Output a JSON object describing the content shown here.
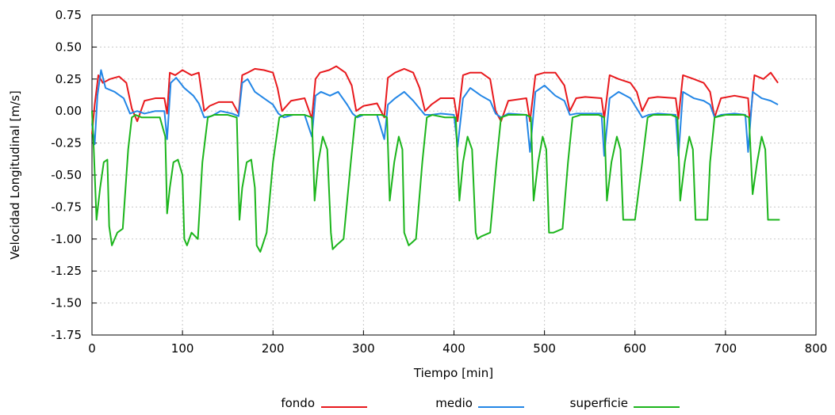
{
  "chart_data": {
    "type": "line",
    "title": "",
    "xlabel": "Tiempo [min]",
    "ylabel": "Velocidad Longitudinal [m/s]",
    "xlim": [
      0,
      800
    ],
    "ylim": [
      -1.75,
      0.75
    ],
    "xticks": [
      0,
      100,
      200,
      300,
      400,
      500,
      600,
      700,
      800
    ],
    "xtick_labels": [
      "0",
      "100",
      "200",
      "300",
      "400",
      "500",
      "600",
      "700",
      "800"
    ],
    "yticks": [
      0.75,
      0.5,
      0.25,
      0.0,
      -0.25,
      -0.5,
      -0.75,
      -1.0,
      -1.25,
      -1.5,
      -1.75
    ],
    "ytick_labels": [
      "0.75",
      "0.50",
      "0.25",
      "0.00",
      "-0.25",
      "-0.50",
      "-0.75",
      "-1.00",
      "-1.25",
      "-1.50",
      "-1.75"
    ],
    "grid": true,
    "legend_position": "bottom",
    "series": [
      {
        "name": "fondo",
        "color": "#e8191d",
        "x": [
          0,
          3,
          7,
          12,
          20,
          30,
          38,
          44,
          50,
          58,
          70,
          80,
          83,
          86,
          92,
          100,
          110,
          118,
          124,
          130,
          140,
          155,
          162,
          166,
          172,
          180,
          190,
          200,
          205,
          210,
          220,
          235,
          243,
          247,
          252,
          262,
          270,
          280,
          287,
          292,
          300,
          315,
          323,
          327,
          335,
          345,
          355,
          362,
          368,
          375,
          385,
          400,
          404,
          410,
          418,
          430,
          440,
          446,
          452,
          460,
          480,
          484,
          490,
          500,
          512,
          522,
          528,
          535,
          545,
          563,
          566,
          572,
          582,
          595,
          602,
          608,
          615,
          625,
          645,
          648,
          653,
          665,
          676,
          683,
          688,
          695,
          710,
          725,
          727,
          732,
          742,
          750,
          758
        ],
        "y": [
          -0.18,
          0.05,
          0.28,
          0.22,
          0.25,
          0.27,
          0.22,
          0.02,
          -0.08,
          0.08,
          0.1,
          0.1,
          -0.02,
          0.3,
          0.28,
          0.32,
          0.28,
          0.3,
          0.0,
          0.04,
          0.07,
          0.07,
          -0.02,
          0.28,
          0.3,
          0.33,
          0.32,
          0.3,
          0.18,
          0.0,
          0.08,
          0.1,
          -0.06,
          0.25,
          0.3,
          0.32,
          0.35,
          0.3,
          0.2,
          0.0,
          0.04,
          0.06,
          -0.05,
          0.26,
          0.3,
          0.33,
          0.3,
          0.18,
          0.0,
          0.05,
          0.1,
          0.1,
          -0.08,
          0.28,
          0.3,
          0.3,
          0.25,
          0.0,
          -0.08,
          0.08,
          0.1,
          -0.08,
          0.28,
          0.3,
          0.3,
          0.2,
          0.0,
          0.1,
          0.11,
          0.1,
          -0.06,
          0.28,
          0.25,
          0.22,
          0.15,
          0.0,
          0.1,
          0.11,
          0.1,
          -0.06,
          0.28,
          0.25,
          0.22,
          0.15,
          -0.05,
          0.1,
          0.12,
          0.1,
          -0.1,
          0.28,
          0.25,
          0.3,
          0.22
        ]
      },
      {
        "name": "medio",
        "color": "#2386e6",
        "x": [
          0,
          3,
          6,
          10,
          15,
          25,
          35,
          42,
          50,
          58,
          70,
          80,
          83,
          87,
          93,
          102,
          112,
          118,
          124,
          132,
          142,
          155,
          162,
          166,
          172,
          180,
          190,
          200,
          206,
          212,
          222,
          235,
          243,
          247,
          253,
          263,
          272,
          282,
          288,
          293,
          300,
          315,
          323,
          327,
          335,
          345,
          355,
          362,
          368,
          375,
          385,
          400,
          404,
          410,
          418,
          430,
          440,
          446,
          452,
          460,
          480,
          484,
          490,
          500,
          512,
          522,
          528,
          535,
          545,
          563,
          566,
          572,
          582,
          595,
          602,
          608,
          615,
          625,
          645,
          648,
          653,
          665,
          676,
          683,
          688,
          695,
          710,
          722,
          725,
          730,
          740,
          750,
          758
        ],
        "y": [
          -0.1,
          -0.26,
          0.12,
          0.32,
          0.18,
          0.15,
          0.1,
          -0.02,
          0.0,
          -0.02,
          0.0,
          0.0,
          -0.22,
          0.22,
          0.26,
          0.18,
          0.12,
          0.06,
          -0.05,
          -0.04,
          0.0,
          -0.02,
          -0.04,
          0.22,
          0.25,
          0.15,
          0.1,
          0.05,
          -0.02,
          -0.05,
          -0.03,
          -0.03,
          -0.2,
          0.12,
          0.15,
          0.12,
          0.15,
          0.05,
          -0.02,
          -0.05,
          -0.03,
          -0.03,
          -0.22,
          0.05,
          0.1,
          0.15,
          0.08,
          0.02,
          -0.03,
          -0.03,
          -0.02,
          -0.03,
          -0.28,
          0.1,
          0.18,
          0.12,
          0.08,
          -0.02,
          -0.05,
          -0.02,
          -0.03,
          -0.32,
          0.15,
          0.2,
          0.12,
          0.08,
          -0.03,
          -0.02,
          -0.02,
          -0.02,
          -0.35,
          0.1,
          0.15,
          0.1,
          0.02,
          -0.05,
          -0.03,
          -0.02,
          -0.03,
          -0.35,
          0.15,
          0.1,
          0.08,
          0.05,
          -0.05,
          -0.03,
          -0.02,
          -0.03,
          -0.32,
          0.15,
          0.1,
          0.08,
          0.05
        ]
      },
      {
        "name": "superficie",
        "color": "#1cb51c",
        "x": [
          0,
          2,
          5,
          9,
          13,
          17,
          19,
          22,
          28,
          34,
          40,
          44,
          48,
          55,
          65,
          75,
          81,
          83,
          86,
          90,
          95,
          100,
          102,
          105,
          110,
          117,
          122,
          128,
          135,
          150,
          160,
          163,
          166,
          171,
          176,
          180,
          182,
          186,
          193,
          200,
          207,
          213,
          220,
          235,
          243,
          246,
          250,
          255,
          260,
          264,
          266,
          270,
          278,
          286,
          291,
          296,
          305,
          320,
          326,
          329,
          334,
          339,
          343,
          345,
          350,
          358,
          365,
          370,
          376,
          390,
          402,
          406,
          410,
          415,
          420,
          424,
          426,
          430,
          440,
          447,
          452,
          460,
          480,
          485,
          488,
          493,
          498,
          502,
          505,
          510,
          520,
          526,
          531,
          540,
          560,
          566,
          569,
          574,
          580,
          584,
          587,
          592,
          600,
          608,
          614,
          620,
          640,
          647,
          650,
          655,
          660,
          664,
          667,
          672,
          680,
          683,
          688,
          700,
          720,
          726,
          730,
          735,
          740,
          744,
          747,
          752,
          760
        ],
        "y": [
          0.0,
          -0.3,
          -0.85,
          -0.6,
          -0.4,
          -0.38,
          -0.9,
          -1.05,
          -0.95,
          -0.92,
          -0.3,
          -0.05,
          -0.03,
          -0.05,
          -0.05,
          -0.05,
          -0.2,
          -0.8,
          -0.6,
          -0.4,
          -0.38,
          -0.5,
          -1.0,
          -1.05,
          -0.95,
          -1.0,
          -0.4,
          -0.05,
          -0.03,
          -0.03,
          -0.05,
          -0.85,
          -0.6,
          -0.4,
          -0.38,
          -0.6,
          -1.05,
          -1.1,
          -0.95,
          -0.4,
          -0.05,
          -0.03,
          -0.03,
          -0.03,
          -0.05,
          -0.7,
          -0.4,
          -0.2,
          -0.3,
          -0.95,
          -1.08,
          -1.05,
          -1.0,
          -0.4,
          -0.05,
          -0.03,
          -0.03,
          -0.03,
          -0.05,
          -0.7,
          -0.4,
          -0.2,
          -0.3,
          -0.95,
          -1.05,
          -1.0,
          -0.4,
          -0.05,
          -0.03,
          -0.05,
          -0.05,
          -0.7,
          -0.4,
          -0.2,
          -0.3,
          -0.95,
          -1.0,
          -0.98,
          -0.95,
          -0.4,
          -0.05,
          -0.03,
          -0.03,
          -0.05,
          -0.7,
          -0.4,
          -0.2,
          -0.3,
          -0.95,
          -0.95,
          -0.92,
          -0.4,
          -0.05,
          -0.03,
          -0.03,
          -0.05,
          -0.7,
          -0.4,
          -0.2,
          -0.3,
          -0.85,
          -0.85,
          -0.85,
          -0.4,
          -0.05,
          -0.03,
          -0.03,
          -0.05,
          -0.7,
          -0.4,
          -0.2,
          -0.3,
          -0.85,
          -0.85,
          -0.85,
          -0.4,
          -0.05,
          -0.03,
          -0.03,
          -0.05,
          -0.65,
          -0.4,
          -0.2,
          -0.3,
          -0.85,
          -0.85,
          -0.85
        ]
      }
    ]
  }
}
